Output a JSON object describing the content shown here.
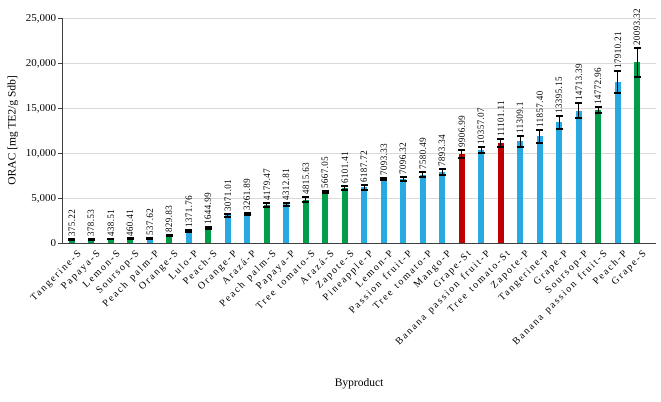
{
  "figure": {
    "y_axis_title": "ORAC [mg TE2/g Sdb]",
    "x_axis_title": "Byproduct"
  },
  "chart_data": {
    "type": "bar",
    "title": "",
    "xlabel": "Byproduct",
    "ylabel": "ORAC [mg TE2/g Sdb]",
    "ylim": [
      0,
      25000
    ],
    "grid": true,
    "legend": "none",
    "y_ticks": [
      {
        "label": "0",
        "value": 0
      },
      {
        "label": "5,000",
        "value": 5000
      },
      {
        "label": "10,000",
        "value": 10000
      },
      {
        "label": "15,000",
        "value": 15000
      },
      {
        "label": "20,000",
        "value": 20000
      },
      {
        "label": "25,000",
        "value": 25000
      }
    ],
    "colors": {
      "S": "#009E49",
      "P": "#29A9E1",
      "St": "#C00000"
    },
    "points": [
      {
        "category": "Tangerine-S",
        "value": 375.22,
        "label": "375.22",
        "error": 35,
        "group": "S"
      },
      {
        "category": "Papaya-S",
        "value": 378.53,
        "label": "378.53",
        "error": 35,
        "group": "S"
      },
      {
        "category": "Lemon-S",
        "value": 438.51,
        "label": "438.51",
        "error": 40,
        "group": "S"
      },
      {
        "category": "Soursop-S",
        "value": 460.41,
        "label": "460.41",
        "error": 40,
        "group": "S"
      },
      {
        "category": "Peach palm-P",
        "value": 537.62,
        "label": "537.62",
        "error": 55,
        "group": "P"
      },
      {
        "category": "Orange-S",
        "value": 829.83,
        "label": "829.83",
        "error": 60,
        "group": "S"
      },
      {
        "category": "Lulo-P",
        "value": 1371.76,
        "label": "1371.76",
        "error": 100,
        "group": "P"
      },
      {
        "category": "Peach-S",
        "value": 1644.99,
        "label": "1644.99",
        "error": 80,
        "group": "S"
      },
      {
        "category": "Orange-P",
        "value": 3071.01,
        "label": "3071.01",
        "error": 160,
        "group": "P"
      },
      {
        "category": "Arazá-P",
        "value": 3261.89,
        "label": "3261.89",
        "error": 110,
        "group": "P"
      },
      {
        "category": "Peach palm-S",
        "value": 4179.47,
        "label": "4179.47",
        "error": 220,
        "group": "S"
      },
      {
        "category": "Papaya-P",
        "value": 4312.81,
        "label": "4312.81",
        "error": 160,
        "group": "P"
      },
      {
        "category": "Tree tomato-S",
        "value": 4815.63,
        "label": "4815.63",
        "error": 260,
        "group": "S"
      },
      {
        "category": "Arazá-S",
        "value": 5667.05,
        "label": "5667.05",
        "error": 160,
        "group": "S"
      },
      {
        "category": "Zapote-S",
        "value": 6101.41,
        "label": "6101.41",
        "error": 210,
        "group": "S"
      },
      {
        "category": "Pineapple-P",
        "value": 6187.72,
        "label": "6187.72",
        "error": 260,
        "group": "P"
      },
      {
        "category": "Lemon-P",
        "value": 7093.33,
        "label": "7093.33",
        "error": 120,
        "group": "P"
      },
      {
        "category": "Passion fruit-P",
        "value": 7096.32,
        "label": "7096.32",
        "error": 210,
        "group": "P"
      },
      {
        "category": "Tree tomato-P",
        "value": 7580.49,
        "label": "7580.49",
        "error": 260,
        "group": "P"
      },
      {
        "category": "Mango-P",
        "value": 7893.34,
        "label": "7893.34",
        "error": 310,
        "group": "P"
      },
      {
        "category": "Grape-St",
        "value": 9906.99,
        "label": "9906.99",
        "error": 420,
        "group": "St"
      },
      {
        "category": "Banana passion fruit-P",
        "value": 10357.07,
        "label": "10357.07",
        "error": 360,
        "group": "P"
      },
      {
        "category": "Tree tomato-St",
        "value": 11101.11,
        "label": "11101.11",
        "error": 460,
        "group": "St"
      },
      {
        "category": "Zapote-P",
        "value": 11309.1,
        "label": "11309.1",
        "error": 620,
        "group": "P"
      },
      {
        "category": "Tangerine-P",
        "value": 11857.4,
        "label": "11857.40",
        "error": 700,
        "group": "P"
      },
      {
        "category": "Grape-P",
        "value": 13395.15,
        "label": "13395.15",
        "error": 700,
        "group": "P"
      },
      {
        "category": "Soursop-P",
        "value": 14713.39,
        "label": "14713.39",
        "error": 800,
        "group": "P"
      },
      {
        "category": "Banana passion fruit-S",
        "value": 14772.96,
        "label": "14772.96",
        "error": 360,
        "group": "S"
      },
      {
        "category": "Peach-P",
        "value": 17910.21,
        "label": "17910.21",
        "error": 1200,
        "group": "P"
      },
      {
        "category": "Grape-S",
        "value": 20093.32,
        "label": "20093.32",
        "error": 1600,
        "group": "S"
      }
    ]
  }
}
